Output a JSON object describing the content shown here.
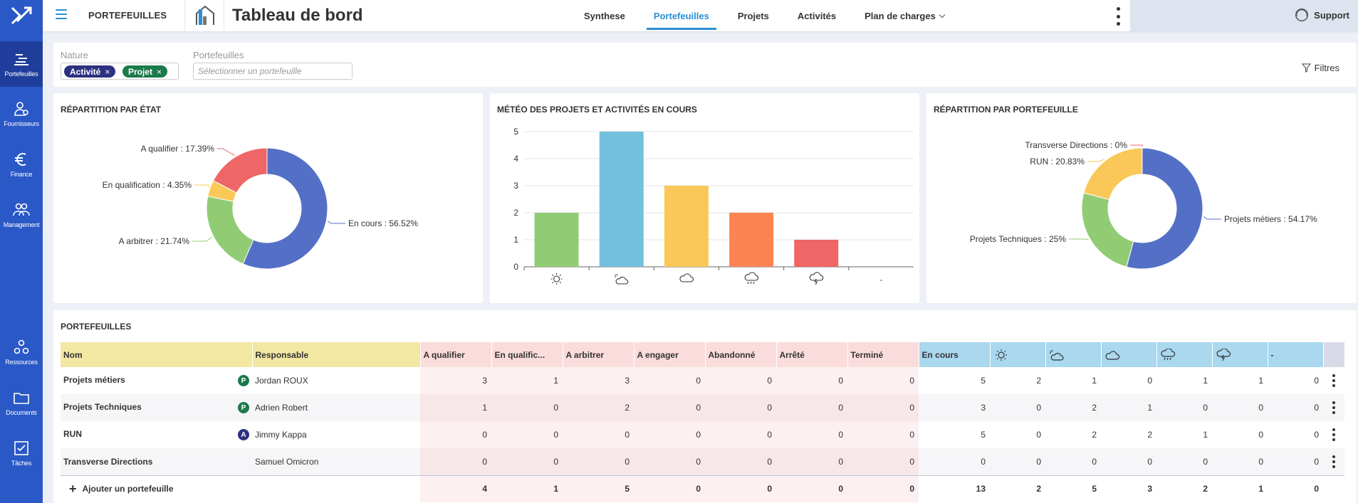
{
  "sidebar": {
    "items": [
      {
        "label": "Portefeuilles",
        "icon": "portfolio-icon"
      },
      {
        "label": "Fournisseurs",
        "icon": "supplier-icon"
      },
      {
        "label": "Finance",
        "icon": "euro-icon"
      },
      {
        "label": "Management",
        "icon": "people-icon"
      },
      {
        "label": "Ressources",
        "icon": "resources-icon"
      },
      {
        "label": "Documents",
        "icon": "folder-icon"
      },
      {
        "label": "Tâches",
        "icon": "tasks-icon"
      }
    ]
  },
  "header": {
    "module": "PORTEFEUILLES",
    "title": "Tableau de bord",
    "tabs": [
      "Synthese",
      "Portefeuilles",
      "Projets",
      "Activités",
      "Plan de charges"
    ],
    "active_tab": "Portefeuilles",
    "support": "Support"
  },
  "filters": {
    "nature_label": "Nature",
    "chips": [
      "Activité",
      "Projet"
    ],
    "portefeuilles_label": "Portefeuilles",
    "portefeuilles_placeholder": "Sélectionner un portefeuille",
    "filtres_label": "Filtres"
  },
  "chart_data": [
    {
      "type": "pie",
      "title": "RÉPARTITION PAR ÉTAT",
      "labels": [
        "En cours : 56.52%",
        "A arbitrer : 21.74%",
        "En qualification : 4.35%",
        "A qualifier : 17.39%"
      ],
      "values": [
        56.52,
        21.74,
        4.35,
        17.39
      ],
      "colors": [
        "#5470c6",
        "#91cc75",
        "#fac858",
        "#ee6666"
      ]
    },
    {
      "type": "bar",
      "title": "MÉTÉO DES PROJETS ET ACTIVITÉS EN COURS",
      "categories": [
        "sun",
        "sun-cloud",
        "cloud",
        "rain",
        "storm",
        "-"
      ],
      "values": [
        2,
        5,
        3,
        2,
        1,
        0
      ],
      "colors": [
        "#91cc75",
        "#73c0de",
        "#fac858",
        "#fc8452",
        "#ee6666",
        "#cccccc"
      ],
      "yticks": [
        "0",
        "1",
        "2",
        "3",
        "4",
        "5"
      ],
      "ylim": [
        0,
        5
      ]
    },
    {
      "type": "pie",
      "title": "RÉPARTITION PAR PORTEFEUILLE",
      "labels": [
        "Projets métiers : 54.17%",
        "Projets Techniques : 25%",
        "RUN : 20.83%",
        "Transverse Directions : 0%"
      ],
      "values": [
        54.17,
        25,
        20.83,
        0
      ],
      "colors": [
        "#5470c6",
        "#91cc75",
        "#fac858",
        "#ee6666"
      ]
    }
  ],
  "table": {
    "title": "PORTEFEUILLES",
    "headers": [
      "Nom",
      "Responsable",
      "A qualifier",
      "En qualific...",
      "A arbitrer",
      "A engager",
      "Abandonné",
      "Arrêté",
      "Terminé",
      "En cours",
      "sun-icon",
      "sun-cloud-icon",
      "cloud-icon",
      "rain-icon",
      "storm-icon",
      "-"
    ],
    "rows": [
      {
        "name": "Projets métiers",
        "badge": "P",
        "resp": "Jordan ROUX",
        "vals": [
          "3",
          "1",
          "3",
          "0",
          "0",
          "0",
          "0",
          "5",
          "2",
          "1",
          "0",
          "1",
          "1",
          "0"
        ]
      },
      {
        "name": "Projets Techniques",
        "badge": "P",
        "resp": "Adrien Robert",
        "vals": [
          "1",
          "0",
          "2",
          "0",
          "0",
          "0",
          "0",
          "3",
          "0",
          "2",
          "1",
          "0",
          "0",
          "0"
        ]
      },
      {
        "name": "RUN",
        "badge": "A",
        "resp": "Jimmy Kappa",
        "vals": [
          "0",
          "0",
          "0",
          "0",
          "0",
          "0",
          "0",
          "5",
          "0",
          "2",
          "2",
          "1",
          "0",
          "0"
        ]
      },
      {
        "name": "Transverse Directions",
        "badge": "",
        "resp": "Samuel Omicron",
        "vals": [
          "0",
          "0",
          "0",
          "0",
          "0",
          "0",
          "0",
          "0",
          "0",
          "0",
          "0",
          "0",
          "0",
          "0"
        ]
      }
    ],
    "add_label": "Ajouter un portefeuille",
    "totals": [
      "4",
      "1",
      "5",
      "0",
      "0",
      "0",
      "0",
      "13",
      "2",
      "5",
      "3",
      "2",
      "1",
      "0"
    ]
  }
}
